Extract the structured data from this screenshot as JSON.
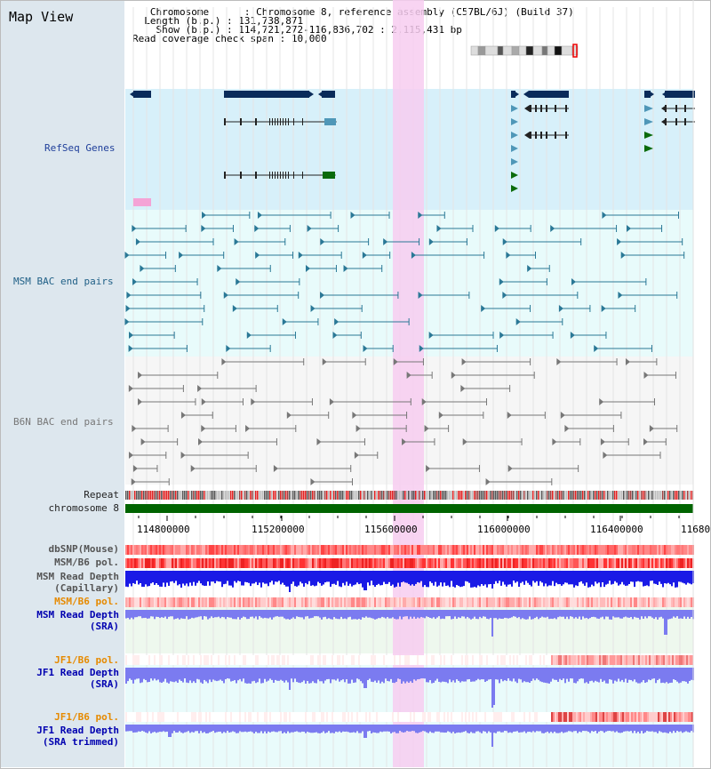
{
  "view_title": "Map View",
  "info": {
    "chromosome_label": "Chromosome",
    "chromosome_value": "Chromosome 8, reference assembly (C57BL/6J) (Build 37)",
    "length_label": "Length (b.p.)",
    "length_value": "131,738,871",
    "show_label": "Show (b.p.)",
    "show_value": "114,721,272-116,836,702 : 2,115,431 bp",
    "coverage_label": "Read coverage check span",
    "coverage_value": "10,000"
  },
  "tracks": {
    "refseq": "RefSeq Genes",
    "msm_bac": "MSM BAC end pairs",
    "b6n_bac": "B6N BAC end pairs",
    "repeat": "Repeat",
    "chromosome": "chromosome 8",
    "dbsnp": "dbSNP(Mouse)",
    "msm_b6_pol": "MSM/B6 pol.",
    "msm_depth_cap_1": "MSM Read Depth",
    "msm_depth_cap_2": "(Capillary)",
    "msm_b6_pol2": "MSM/B6 pol.",
    "msm_depth_sra_1": "MSM Read Depth",
    "msm_depth_sra_2": "(SRA)",
    "jf1_pol": "JF1/B6 pol.",
    "jf1_depth_sra_1": "JF1 Read Depth",
    "jf1_depth_sra_2": "(SRA)",
    "jf1_pol2": "JF1/B6 pol.",
    "jf1_depth_trim_1": "JF1 Read Depth",
    "jf1_depth_trim_2": "(SRA trimmed)"
  },
  "axis_ticks": [
    "114800000",
    "115200000",
    "115600000",
    "116000000",
    "116400000",
    "11680"
  ],
  "colors": {
    "refseq_bg": "#d7f0fa",
    "msm_bg": "#e8fbfb",
    "b6n_bg": "#f6f6f6",
    "highlight": "#f7cdf0",
    "chromosome_bar": "#006400",
    "gene_dark": "#0a2b5a",
    "gene_mid": "#4f97b8",
    "gene_green": "#0b6b0b",
    "depth_blue": "#1a1ae6",
    "depth_light": "#7b7bf0"
  }
}
